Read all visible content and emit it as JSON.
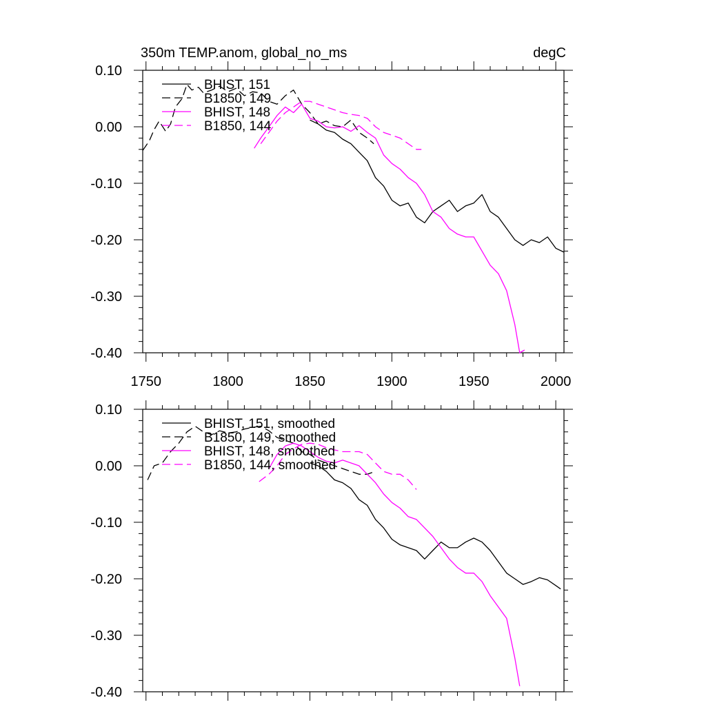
{
  "chart_data": [
    {
      "type": "line",
      "title": "350m TEMP.anom, global_no_ms",
      "units": "degC",
      "xlim": [
        1748,
        2005
      ],
      "ylim": [
        -0.4,
        0.1
      ],
      "xticks": [
        1750,
        1800,
        1850,
        1900,
        1950,
        2000
      ],
      "xtick_labels": [
        "1750",
        "1800",
        "1850",
        "1900",
        "1950",
        "2000"
      ],
      "yticks": [
        0.1,
        0.0,
        -0.1,
        -0.2,
        -0.3,
        -0.4
      ],
      "ytick_labels": [
        "0.10",
        "0.00",
        "-0.10",
        "-0.20",
        "-0.30",
        "-0.40"
      ],
      "grid": false,
      "legend_position": "top-left",
      "series": [
        {
          "name": "BHIST, 151",
          "color": "#000000",
          "dash": "solid",
          "x": [
            1850,
            1855,
            1860,
            1865,
            1870,
            1875,
            1880,
            1885,
            1890,
            1895,
            1900,
            1905,
            1910,
            1915,
            1920,
            1925,
            1930,
            1935,
            1940,
            1945,
            1950,
            1955,
            1960,
            1965,
            1970,
            1975,
            1980,
            1985,
            1990,
            1995,
            2000,
            2005
          ],
          "y": [
            0.012,
            0.005,
            -0.006,
            -0.01,
            -0.022,
            -0.03,
            -0.045,
            -0.06,
            -0.09,
            -0.105,
            -0.13,
            -0.14,
            -0.135,
            -0.16,
            -0.17,
            -0.15,
            -0.14,
            -0.13,
            -0.15,
            -0.14,
            -0.135,
            -0.12,
            -0.15,
            -0.16,
            -0.18,
            -0.2,
            -0.21,
            -0.2,
            -0.205,
            -0.195,
            -0.215,
            -0.222
          ]
        },
        {
          "name": "B1850, 149",
          "color": "#000000",
          "dash": "dashed",
          "x": [
            1748,
            1752,
            1755,
            1758,
            1762,
            1765,
            1768,
            1772,
            1775,
            1778,
            1782,
            1785,
            1790,
            1795,
            1800,
            1805,
            1810,
            1815,
            1820,
            1825,
            1830,
            1835,
            1840,
            1845,
            1850,
            1855,
            1860,
            1865,
            1870,
            1875,
            1880,
            1885,
            1889
          ],
          "y": [
            -0.042,
            -0.025,
            -0.005,
            0.01,
            -0.008,
            0.005,
            0.035,
            0.05,
            0.075,
            0.065,
            0.07,
            0.06,
            0.065,
            0.072,
            0.062,
            0.068,
            0.055,
            0.062,
            0.06,
            0.045,
            0.04,
            0.055,
            0.065,
            0.04,
            0.025,
            0.005,
            0.01,
            0.002,
            0.0,
            0.012,
            -0.01,
            -0.02,
            -0.03
          ]
        },
        {
          "name": "BHIST, 148",
          "color": "#ff00ff",
          "dash": "solid",
          "x": [
            1816,
            1820,
            1825,
            1830,
            1835,
            1840,
            1845,
            1850,
            1855,
            1860,
            1865,
            1870,
            1875,
            1880,
            1885,
            1890,
            1895,
            1900,
            1905,
            1910,
            1915,
            1920,
            1925,
            1930,
            1935,
            1940,
            1945,
            1950,
            1955,
            1960,
            1965,
            1970,
            1975,
            1978,
            1981
          ],
          "y": [
            -0.038,
            -0.02,
            0.0,
            0.02,
            0.035,
            0.025,
            0.04,
            0.015,
            0.01,
            0.0,
            -0.002,
            0.0,
            -0.008,
            0.002,
            -0.01,
            -0.02,
            -0.05,
            -0.065,
            -0.075,
            -0.09,
            -0.1,
            -0.12,
            -0.15,
            -0.16,
            -0.18,
            -0.19,
            -0.195,
            -0.195,
            -0.22,
            -0.245,
            -0.26,
            -0.29,
            -0.35,
            -0.4,
            -0.395
          ]
        },
        {
          "name": "B1850, 144",
          "color": "#ff00ff",
          "dash": "dashed",
          "x": [
            1820,
            1825,
            1830,
            1835,
            1840,
            1845,
            1850,
            1855,
            1860,
            1865,
            1870,
            1875,
            1880,
            1885,
            1890,
            1895,
            1900,
            1905,
            1910,
            1915,
            1918
          ],
          "y": [
            -0.03,
            -0.01,
            0.01,
            0.025,
            0.035,
            0.045,
            0.045,
            0.04,
            0.035,
            0.03,
            0.025,
            0.022,
            0.02,
            0.015,
            0.0,
            -0.01,
            -0.015,
            -0.02,
            -0.03,
            -0.04,
            -0.04
          ]
        }
      ]
    },
    {
      "type": "line",
      "title": "",
      "units": "",
      "xlim": [
        1748,
        2005
      ],
      "ylim": [
        -0.4,
        0.1
      ],
      "xticks": [
        1750,
        1800,
        1850,
        1900,
        1950,
        2000
      ],
      "xtick_labels": [],
      "yticks": [
        0.1,
        0.0,
        -0.1,
        -0.2,
        -0.3,
        -0.4
      ],
      "ytick_labels": [
        "0.10",
        "0.00",
        "-0.10",
        "-0.20",
        "-0.30",
        "-0.40"
      ],
      "grid": false,
      "legend_position": "top-left",
      "series": [
        {
          "name": "BHIST, 151, smoothed",
          "color": "#000000",
          "dash": "solid",
          "x": [
            1850,
            1855,
            1860,
            1865,
            1870,
            1875,
            1880,
            1885,
            1890,
            1895,
            1900,
            1905,
            1910,
            1915,
            1920,
            1925,
            1930,
            1935,
            1940,
            1945,
            1950,
            1955,
            1960,
            1965,
            1970,
            1975,
            1980,
            1985,
            1990,
            1995,
            2000,
            2003
          ],
          "y": [
            0.005,
            0.0,
            -0.01,
            -0.025,
            -0.03,
            -0.04,
            -0.06,
            -0.07,
            -0.095,
            -0.11,
            -0.13,
            -0.14,
            -0.145,
            -0.15,
            -0.165,
            -0.15,
            -0.135,
            -0.145,
            -0.145,
            -0.135,
            -0.128,
            -0.135,
            -0.15,
            -0.17,
            -0.19,
            -0.2,
            -0.21,
            -0.205,
            -0.198,
            -0.202,
            -0.212,
            -0.218
          ]
        },
        {
          "name": "B1850, 149, smoothed",
          "color": "#000000",
          "dash": "dashed",
          "x": [
            1751,
            1755,
            1760,
            1765,
            1770,
            1775,
            1780,
            1785,
            1790,
            1795,
            1800,
            1805,
            1810,
            1815,
            1820,
            1825,
            1830,
            1835,
            1840,
            1845,
            1850,
            1855,
            1860,
            1865,
            1870,
            1875,
            1880,
            1885,
            1888
          ],
          "y": [
            -0.025,
            0.0,
            0.005,
            0.025,
            0.04,
            0.06,
            0.07,
            0.06,
            0.055,
            0.062,
            0.058,
            0.06,
            0.065,
            0.068,
            0.07,
            0.062,
            0.05,
            0.045,
            0.04,
            0.025,
            0.02,
            0.01,
            0.005,
            0.0,
            -0.005,
            -0.01,
            -0.015,
            -0.015,
            -0.012
          ]
        },
        {
          "name": "BHIST, 148, smoothed",
          "color": "#ff00ff",
          "dash": "solid",
          "x": [
            1825,
            1830,
            1835,
            1840,
            1845,
            1850,
            1855,
            1860,
            1865,
            1870,
            1875,
            1880,
            1885,
            1890,
            1895,
            1900,
            1905,
            1910,
            1915,
            1920,
            1925,
            1930,
            1935,
            1940,
            1945,
            1950,
            1955,
            1960,
            1965,
            1970,
            1975,
            1978
          ],
          "y": [
            -0.005,
            0.02,
            0.035,
            0.04,
            0.035,
            0.025,
            0.015,
            0.008,
            0.005,
            0.01,
            0.005,
            0.0,
            -0.015,
            -0.03,
            -0.05,
            -0.065,
            -0.075,
            -0.09,
            -0.095,
            -0.11,
            -0.125,
            -0.145,
            -0.165,
            -0.18,
            -0.19,
            -0.19,
            -0.205,
            -0.23,
            -0.25,
            -0.27,
            -0.34,
            -0.39
          ]
        },
        {
          "name": "B1850, 144, smoothed",
          "color": "#ff00ff",
          "dash": "dashed",
          "x": [
            1819,
            1825,
            1830,
            1835,
            1840,
            1845,
            1850,
            1855,
            1860,
            1865,
            1870,
            1875,
            1880,
            1885,
            1890,
            1895,
            1900,
            1905,
            1910,
            1915
          ],
          "y": [
            -0.028,
            -0.015,
            0.0,
            0.02,
            0.03,
            0.038,
            0.04,
            0.038,
            0.032,
            0.028,
            0.025,
            0.025,
            0.025,
            0.02,
            0.005,
            -0.01,
            -0.015,
            -0.015,
            -0.025,
            -0.042
          ]
        }
      ]
    }
  ]
}
